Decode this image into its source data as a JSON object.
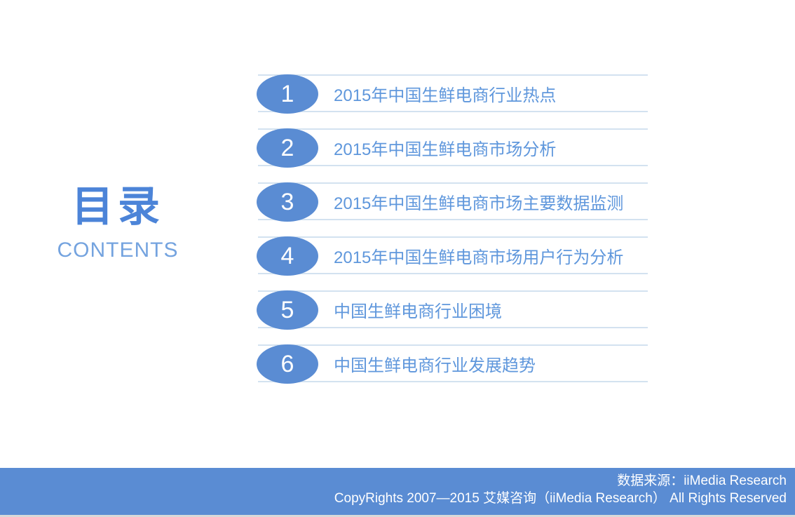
{
  "title": {
    "cn": "目录",
    "en": "CONTENTS"
  },
  "toc": {
    "items": [
      {
        "number": "1",
        "label": "2015年中国生鲜电商行业热点"
      },
      {
        "number": "2",
        "label": "2015年中国生鲜电商市场分析"
      },
      {
        "number": "3",
        "label": "2015年中国生鲜电商市场主要数据监测"
      },
      {
        "number": "4",
        "label": "2015年中国生鲜电商市场用户行为分析"
      },
      {
        "number": "5",
        "label": "中国生鲜电商行业困境"
      },
      {
        "number": "6",
        "label": "中国生鲜电商行业发展趋势"
      }
    ]
  },
  "footer": {
    "source": "数据来源：iiMedia Research",
    "copyright": "CopyRights 2007—2015 艾媒咨询（iiMedia Research） All Rights Reserved"
  },
  "colors": {
    "accent": "#5a8cd3",
    "item_text": "#5f97dc",
    "divider": "#d3e2f0",
    "title_cn": "#4c84d8",
    "title_en": "#74a3df",
    "footer_bg": "#5a8cd3",
    "footer_text": "#ffffff"
  }
}
